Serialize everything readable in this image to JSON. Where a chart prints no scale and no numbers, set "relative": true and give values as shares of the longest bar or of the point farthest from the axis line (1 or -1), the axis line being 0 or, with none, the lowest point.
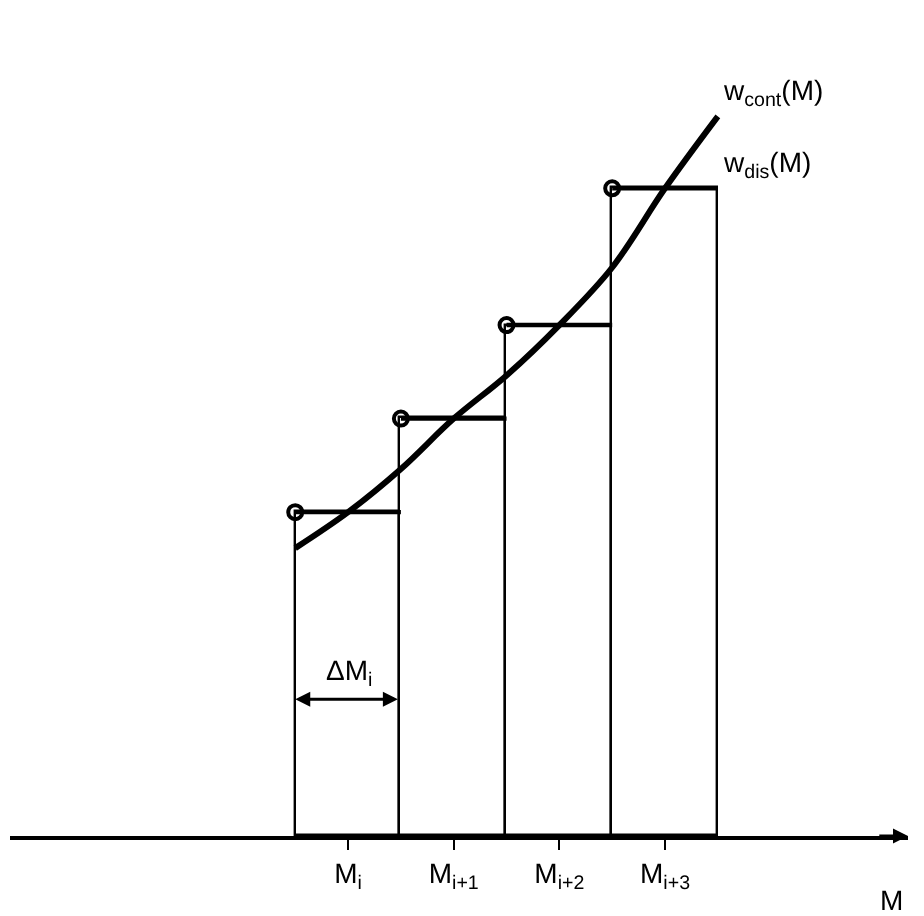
{
  "chart_data": {
    "type": "bar",
    "relative": true,
    "xlabel": "M",
    "tick_labels": "x",
    "legend": false,
    "categories": [
      null,
      "M$_{i}$",
      null,
      "M$_{i+1}$",
      null,
      "M$_{i+2}$",
      null,
      "M$_{i+3}$",
      null
    ],
    "series": [
      {
        "name": "w$_{dis}$(M)",
        "color": "#000000",
        "marker": "none",
        "values": [
          null,
          0.45,
          null,
          0.58,
          null,
          0.71,
          null,
          0.9,
          null
        ]
      },
      {
        "type": "scatter",
        "color": "#000000",
        "marker": "circle",
        "values": [
          0.45,
          null,
          0.58,
          null,
          0.71,
          null,
          0.9,
          null,
          null
        ]
      },
      {
        "name": "w$_{cont}$(M)",
        "type": "line",
        "color": "#000000",
        "marker": "none",
        "values": [
          0.4,
          0.45,
          0.51,
          0.58,
          0.64,
          0.71,
          0.79,
          0.9,
          1.0
        ]
      }
    ],
    "annotations": [
      "ΔM$_{i}$"
    ]
  }
}
